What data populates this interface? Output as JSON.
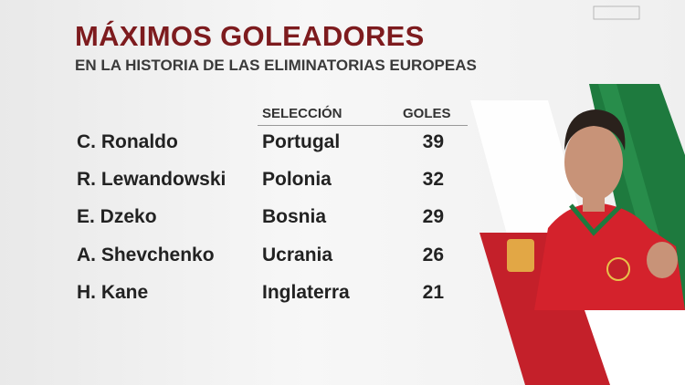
{
  "header": {
    "title": "MÁXIMOS GOLEADORES",
    "subtitle": "EN LA HISTORIA DE LAS ELIMINATORIAS EUROPEAS"
  },
  "table": {
    "columns": [
      "SELECCIÓN",
      "GOLES"
    ],
    "rows": [
      [
        "C. Ronaldo",
        "Portugal",
        "39"
      ],
      [
        "R. Lewandowski",
        "Polonia",
        "32"
      ],
      [
        "E. Dzeko",
        "Bosnia",
        "29"
      ],
      [
        "A. Shevchenko",
        "Ucrania",
        "26"
      ],
      [
        "H. Kane",
        "Inglaterra",
        "21"
      ]
    ]
  }
}
